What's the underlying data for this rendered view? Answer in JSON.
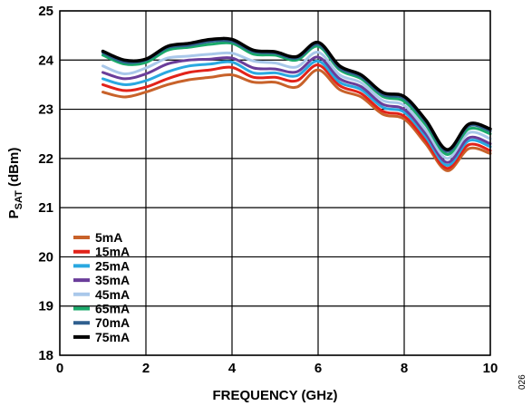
{
  "chart_data": {
    "type": "line",
    "title": "",
    "xlabel": "FREQUENCY (GHz)",
    "ylabel": {
      "main": "P",
      "sub": "SAT",
      "tail": " (dBm)"
    },
    "xlim": [
      0,
      10
    ],
    "ylim": [
      18,
      25
    ],
    "xticks": [
      "0",
      "2",
      "4",
      "6",
      "8",
      "10"
    ],
    "yticks": [
      "18",
      "19",
      "20",
      "21",
      "22",
      "23",
      "24",
      "25"
    ],
    "grid": true,
    "legend_position": "bottom-left",
    "figure_id": "026",
    "x": [
      1.0,
      1.5,
      2.0,
      2.5,
      3.0,
      3.5,
      4.0,
      4.5,
      5.0,
      5.5,
      6.0,
      6.5,
      7.0,
      7.5,
      8.0,
      8.5,
      9.0,
      9.5,
      10.0
    ],
    "series": [
      {
        "name": "5mA",
        "color": "#c8622a",
        "values": [
          23.35,
          23.25,
          23.35,
          23.5,
          23.6,
          23.65,
          23.7,
          23.55,
          23.55,
          23.45,
          23.8,
          23.4,
          23.25,
          22.9,
          22.8,
          22.3,
          21.75,
          22.2,
          22.1
        ]
      },
      {
        "name": "15mA",
        "color": "#e2231a",
        "values": [
          23.5,
          23.38,
          23.45,
          23.62,
          23.75,
          23.8,
          23.85,
          23.65,
          23.65,
          23.58,
          23.9,
          23.48,
          23.32,
          22.96,
          22.86,
          22.36,
          21.8,
          22.28,
          22.16
        ]
      },
      {
        "name": "25mA",
        "color": "#29a8e0",
        "values": [
          23.62,
          23.5,
          23.58,
          23.76,
          23.88,
          23.92,
          23.96,
          23.74,
          23.74,
          23.68,
          23.98,
          23.55,
          23.4,
          23.04,
          22.94,
          22.44,
          21.86,
          22.36,
          22.24
        ]
      },
      {
        "name": "35mA",
        "color": "#6a3d9a",
        "values": [
          23.75,
          23.62,
          23.72,
          23.92,
          24.0,
          24.02,
          24.04,
          23.84,
          23.82,
          23.76,
          24.06,
          23.62,
          23.46,
          23.1,
          23.0,
          22.5,
          21.92,
          22.42,
          22.3
        ]
      },
      {
        "name": "45mA",
        "color": "#a9c8ea",
        "values": [
          23.88,
          23.72,
          23.84,
          24.04,
          24.08,
          24.12,
          24.14,
          23.98,
          23.94,
          23.86,
          24.16,
          23.7,
          23.54,
          23.18,
          23.08,
          22.58,
          22.0,
          22.52,
          22.4
        ]
      },
      {
        "name": "65mA",
        "color": "#1aaa6b",
        "values": [
          24.1,
          23.92,
          23.95,
          24.2,
          24.26,
          24.32,
          24.34,
          24.12,
          24.1,
          24.0,
          24.28,
          23.8,
          23.62,
          23.26,
          23.16,
          22.68,
          22.08,
          22.6,
          22.5
        ]
      },
      {
        "name": "70mA",
        "color": "#2f5f8f",
        "values": [
          24.15,
          23.96,
          24.0,
          24.25,
          24.3,
          24.38,
          24.38,
          24.17,
          24.14,
          24.04,
          24.32,
          23.84,
          23.66,
          23.3,
          23.22,
          22.74,
          22.14,
          22.66,
          22.56
        ]
      },
      {
        "name": "75mA",
        "color": "#000000",
        "values": [
          24.18,
          24.0,
          24.02,
          24.28,
          24.34,
          24.42,
          24.42,
          24.2,
          24.17,
          24.07,
          24.36,
          23.88,
          23.7,
          23.34,
          23.26,
          22.78,
          22.18,
          22.7,
          22.6
        ]
      }
    ]
  }
}
